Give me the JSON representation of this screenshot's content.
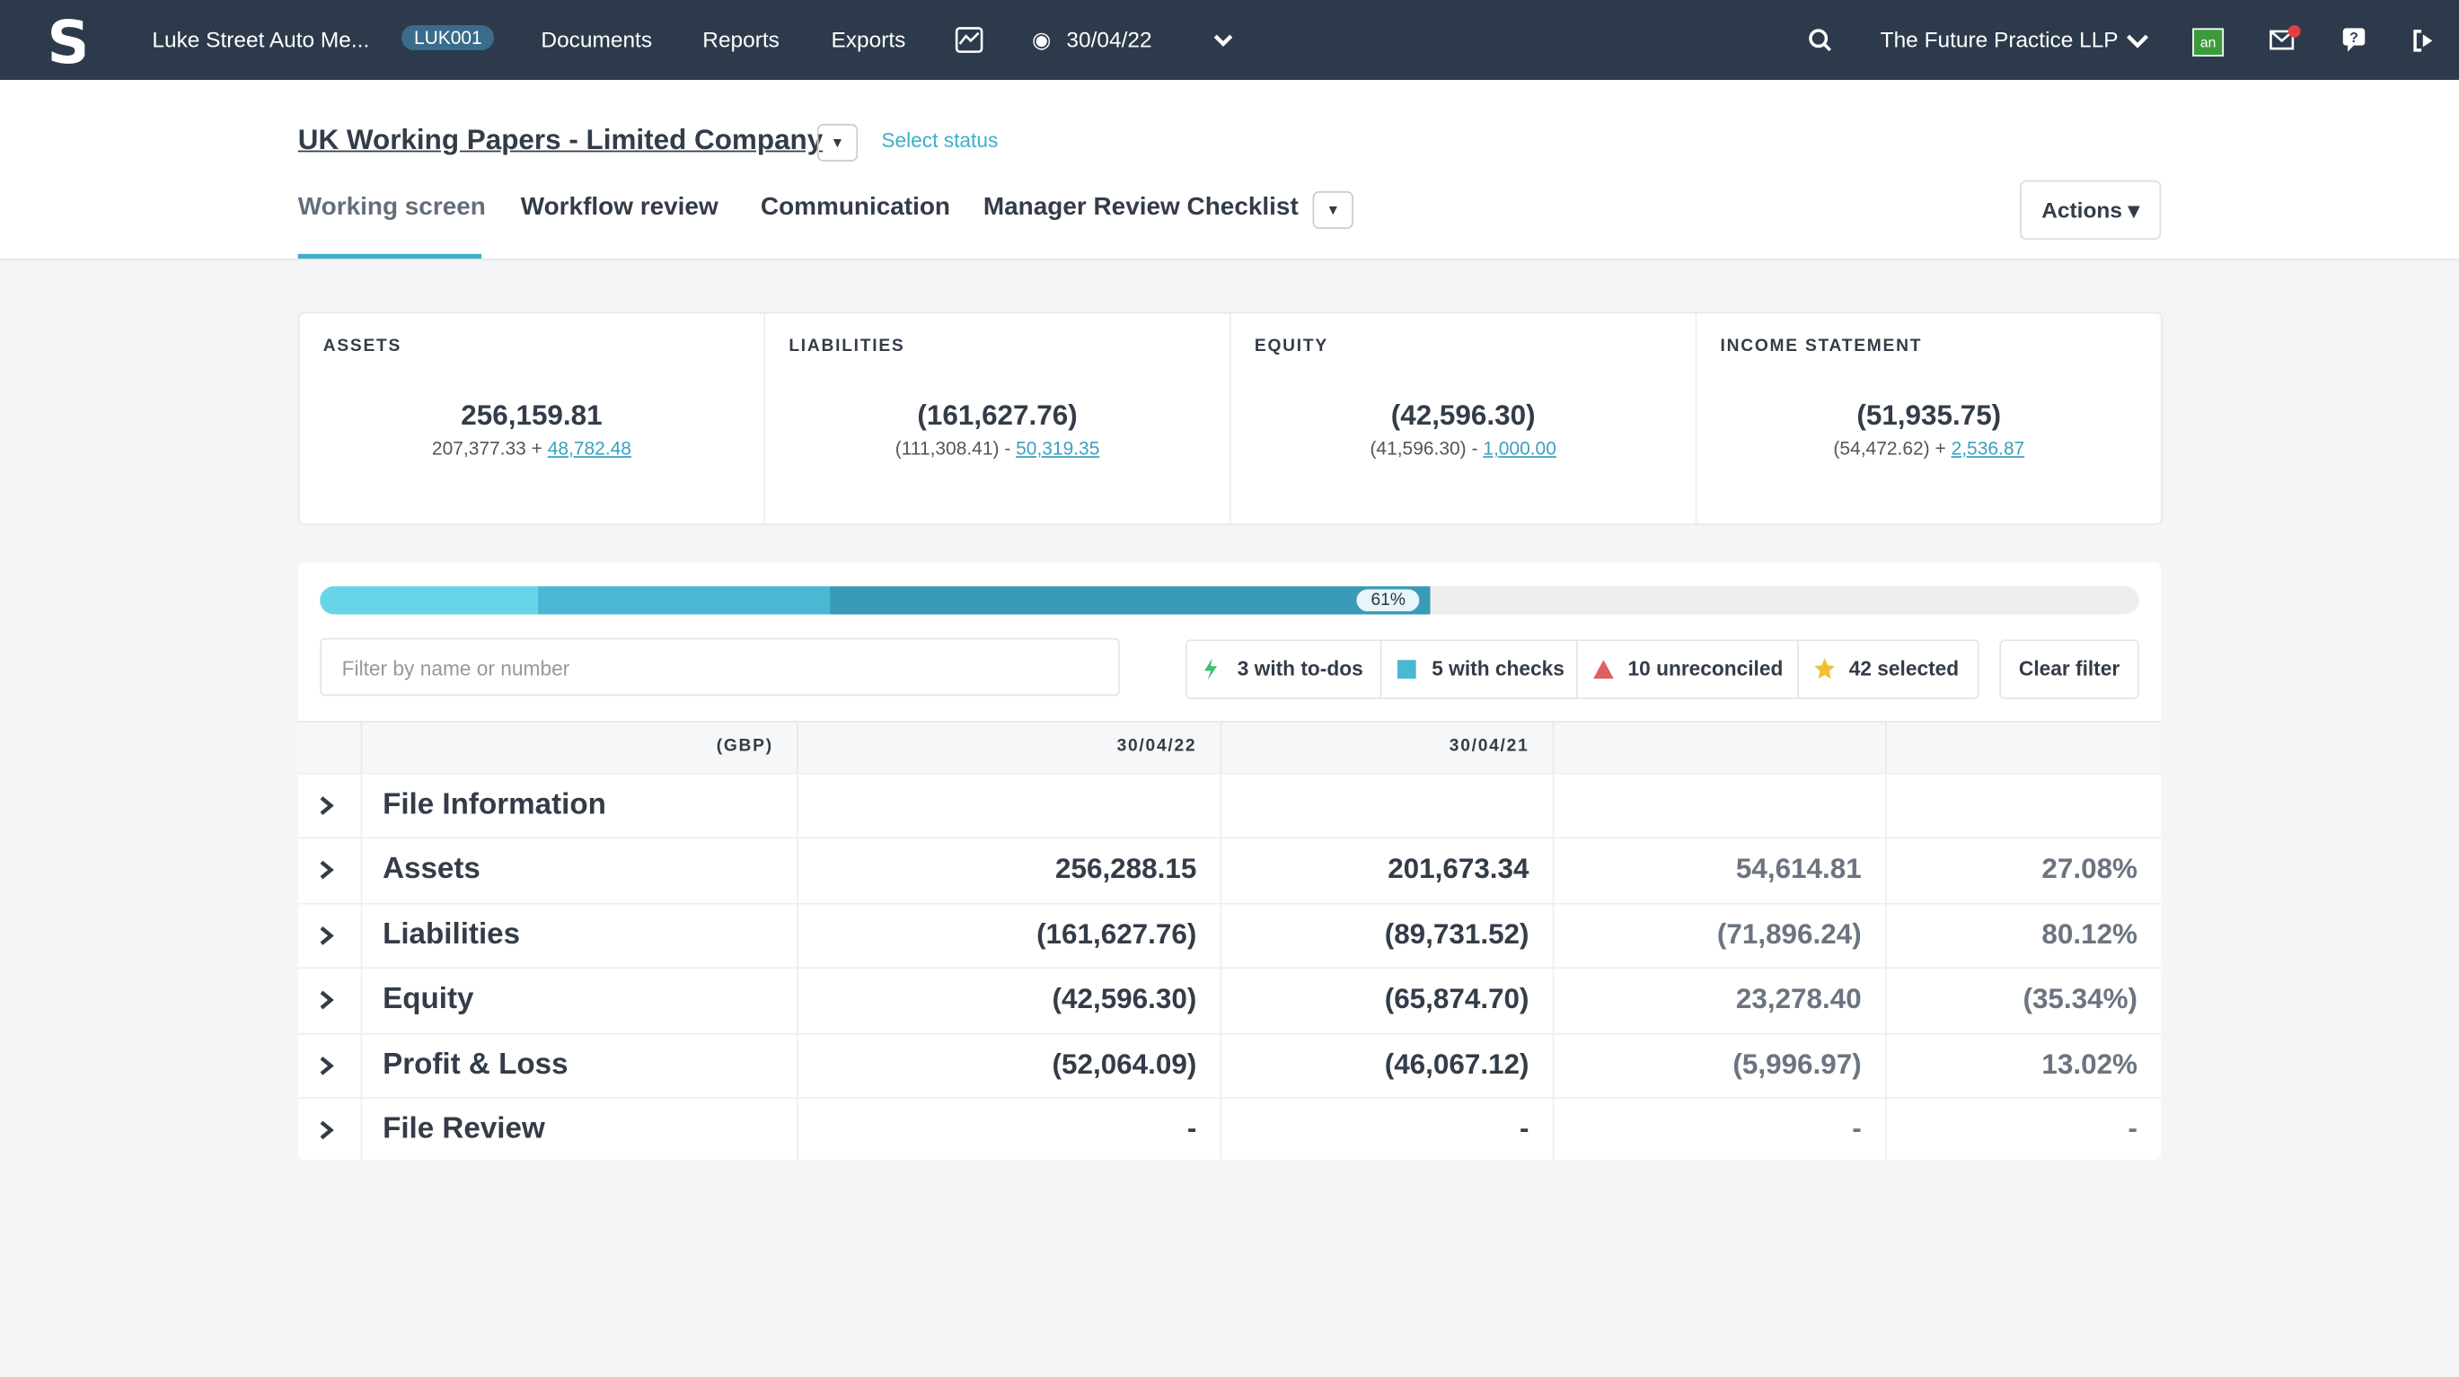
{
  "nav": {
    "client": "Luke Street Auto Me...",
    "code": "LUK001",
    "links": [
      "Documents",
      "Reports",
      "Exports"
    ],
    "date": "30/04/22",
    "practice": "The Future Practice LLP",
    "avatar": "an"
  },
  "header": {
    "title": "UK Working Papers - Limited Company",
    "status": "Select status",
    "tabs": [
      "Working screen",
      "Workflow review",
      "Communication",
      "Manager Review Checklist"
    ],
    "actions": "Actions"
  },
  "cards": [
    {
      "title": "ASSETS",
      "total": "256,159.81",
      "base": "207,377.33",
      "op": "+",
      "link": "48,782.48"
    },
    {
      "title": "LIABILITIES",
      "total": "(161,627.76)",
      "base": "(111,308.41)",
      "op": "-",
      "link": "50,319.35"
    },
    {
      "title": "EQUITY",
      "total": "(42,596.30)",
      "base": "(41,596.30)",
      "op": "-",
      "link": "1,000.00"
    },
    {
      "title": "INCOME STATEMENT",
      "total": "(51,935.75)",
      "base": "(54,472.62)",
      "op": "+",
      "link": "2,536.87"
    }
  ],
  "progress": {
    "segments": [
      12,
      16,
      33
    ],
    "label": "61%"
  },
  "filters": {
    "placeholder": "Filter by name or number",
    "chips": [
      "3 with to-dos",
      "5 with checks",
      "10 unreconciled",
      "42 selected"
    ],
    "clear": "Clear filter"
  },
  "table": {
    "header": [
      "(GBP)",
      "30/04/22",
      "30/04/21"
    ],
    "rows": [
      [
        "File Information"
      ],
      [
        "Assets",
        "256,288.15",
        "201,673.34",
        "54,614.81",
        "27.08%"
      ],
      [
        "Liabilities",
        "(161,627.76)",
        "(89,731.52)",
        "(71,896.24)",
        "80.12%"
      ],
      [
        "Equity",
        "(42,596.30)",
        "(65,874.70)",
        "23,278.40",
        "(35.34%)"
      ],
      [
        "Profit & Loss",
        "(52,064.09)",
        "(46,067.12)",
        "(5,996.97)",
        "13.02%"
      ],
      [
        "File Review",
        "-",
        "-",
        "-",
        "-"
      ]
    ]
  }
}
